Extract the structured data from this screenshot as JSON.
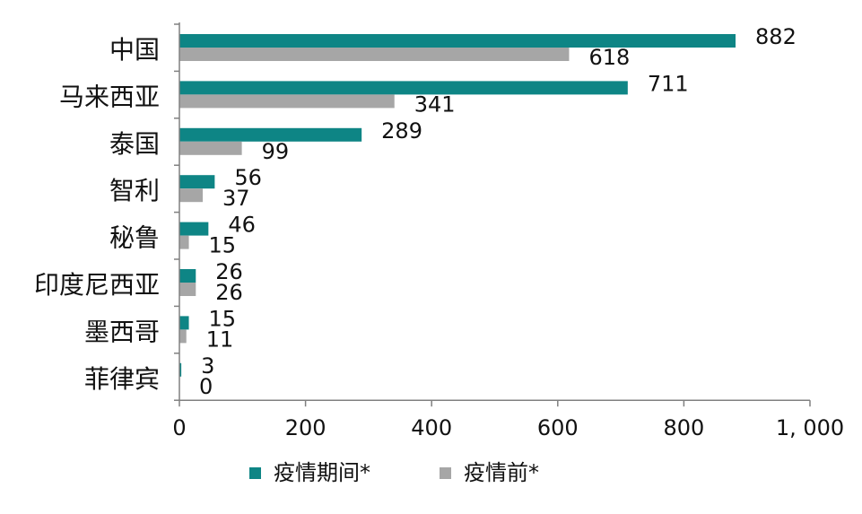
{
  "chart_data": {
    "type": "bar",
    "orientation": "horizontal",
    "categories": [
      "中国",
      "马来西亚",
      "泰国",
      "智利",
      "秘鲁",
      "印度尼西亚",
      "墨西哥",
      "菲律宾"
    ],
    "series": [
      {
        "name": "疫情期间*",
        "color": "#0e8585",
        "values": [
          882,
          711,
          289,
          56,
          46,
          26,
          15,
          3
        ]
      },
      {
        "name": "疫情前*",
        "color": "#a6a6a6",
        "values": [
          618,
          341,
          99,
          37,
          15,
          26,
          11,
          0
        ]
      }
    ],
    "xlim": [
      0,
      1000
    ],
    "xticks": [
      {
        "value": 0,
        "label": "0"
      },
      {
        "value": 200,
        "label": "200"
      },
      {
        "value": 400,
        "label": "400"
      },
      {
        "value": 600,
        "label": "600"
      },
      {
        "value": 800,
        "label": "800"
      },
      {
        "value": 1000,
        "label": "1, 000"
      }
    ],
    "grid": false,
    "legend_position": "bottom"
  }
}
